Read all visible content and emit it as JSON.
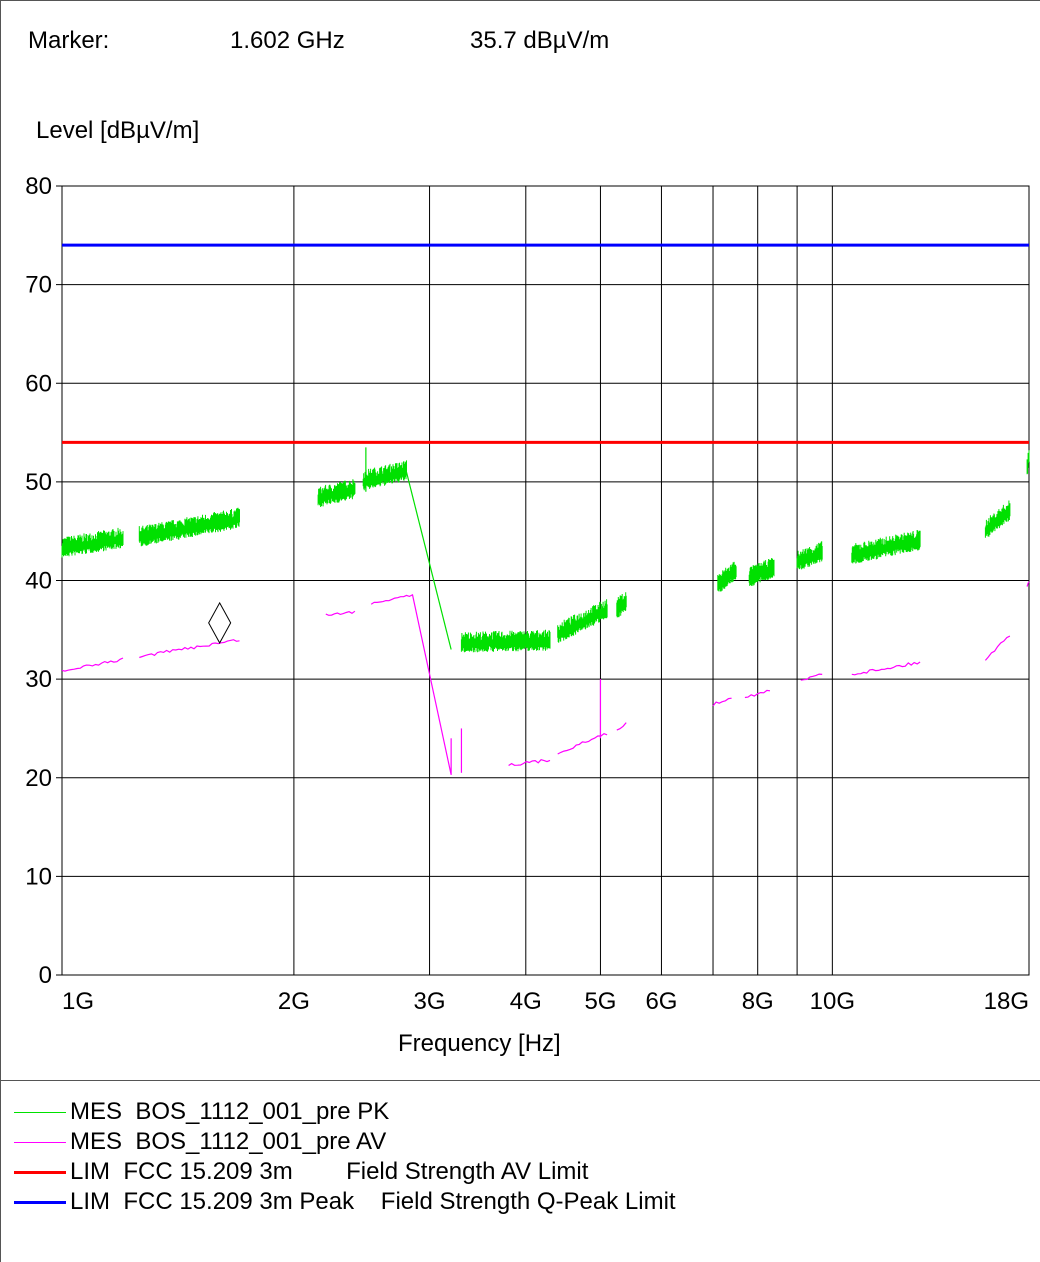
{
  "marker": {
    "label": "Marker:",
    "frequency": "1.602 GHz",
    "level": "35.7 dBµV/m"
  },
  "chart_data": {
    "type": "line",
    "title": "",
    "xlabel": "Frequency [Hz]",
    "ylabel": "Level [dBµV/m]",
    "xscale": "log",
    "xlim": [
      1000000000,
      18000000000
    ],
    "ylim": [
      0,
      80
    ],
    "grid": true,
    "legend_position": "bottom",
    "yticks": [
      0,
      10,
      20,
      30,
      40,
      50,
      60,
      70,
      80
    ],
    "ytick_labels": [
      "0",
      "10",
      "20",
      "30",
      "40",
      "50",
      "60",
      "70",
      "80"
    ],
    "xticks": [
      1000000000,
      2000000000,
      3000000000,
      4000000000,
      5000000000,
      6000000000,
      8000000000,
      10000000000,
      18000000000
    ],
    "xtick_labels": [
      "1G",
      "2G",
      "3G",
      "4G",
      "5G",
      "6G",
      "8G",
      "10G",
      "18G"
    ],
    "xgrid": [
      2000000000,
      3000000000,
      4000000000,
      5000000000,
      6000000000,
      7000000000,
      8000000000,
      9000000000,
      10000000000
    ],
    "marker_point": {
      "x": 1602000000,
      "y": 35.7
    },
    "series": [
      {
        "name": "MES  BOS_1112_001_pre PK",
        "style": "noisy",
        "color": "#00e000",
        "segments": [
          [
            [
              1000000000,
              43.2
            ],
            [
              1200000000,
              44.2
            ]
          ],
          [
            [
              1260000000,
              44.3
            ],
            [
              1700000000,
              46.2
            ]
          ],
          [
            [
              2150000000,
              48.3
            ],
            [
              2400000000,
              49.2
            ]
          ],
          [
            [
              2460000000,
              50.0
            ],
            [
              2800000000,
              51.0
            ]
          ],
          [
            [
              3300000000,
              33.6
            ],
            [
              4300000000,
              33.8
            ]
          ],
          [
            [
              4400000000,
              34.5
            ],
            [
              5100000000,
              37.0
            ]
          ],
          [
            [
              5250000000,
              37.0
            ],
            [
              5400000000,
              37.8
            ]
          ],
          [
            [
              7100000000,
              39.5
            ],
            [
              7500000000,
              41.0
            ]
          ],
          [
            [
              7800000000,
              40.2
            ],
            [
              8400000000,
              41.2
            ]
          ],
          [
            [
              9000000000,
              41.8
            ],
            [
              9700000000,
              42.8
            ]
          ],
          [
            [
              10600000000,
              42.5
            ],
            [
              13000000000,
              44.0
            ]
          ],
          [
            [
              15800000000,
              45.0
            ],
            [
              17000000000,
              47.0
            ]
          ],
          [
            [
              17900000000,
              51.5
            ],
            [
              18000000000,
              52.5
            ]
          ]
        ],
        "lines": [
          [
            [
              2800000000,
              51.0
            ],
            [
              3200000000,
              33.0
            ]
          ],
          [
            [
              2480000000,
              49.0
            ],
            [
              2480000000,
              53.5
            ]
          ]
        ]
      },
      {
        "name": "MES  BOS_1112_001_pre AV",
        "style": "thin",
        "color": "#ff00ff",
        "segments": [
          [
            [
              1000000000,
              30.8
            ],
            [
              1200000000,
              32.0
            ]
          ],
          [
            [
              1260000000,
              32.3
            ],
            [
              1700000000,
              34.0
            ]
          ],
          [
            [
              2200000000,
              36.5
            ],
            [
              2400000000,
              36.8
            ]
          ],
          [
            [
              2520000000,
              37.7
            ],
            [
              2850000000,
              38.6
            ]
          ],
          [
            [
              3800000000,
              21.3
            ],
            [
              4300000000,
              21.8
            ]
          ],
          [
            [
              4400000000,
              22.5
            ],
            [
              5100000000,
              24.5
            ]
          ],
          [
            [
              5250000000,
              24.8
            ],
            [
              5400000000,
              25.5
            ]
          ],
          [
            [
              7000000000,
              27.4
            ],
            [
              7400000000,
              28.2
            ]
          ],
          [
            [
              7700000000,
              28.2
            ],
            [
              8300000000,
              28.8
            ]
          ],
          [
            [
              9100000000,
              29.8
            ],
            [
              9700000000,
              30.6
            ]
          ],
          [
            [
              10600000000,
              30.5
            ],
            [
              13000000000,
              31.7
            ]
          ],
          [
            [
              15800000000,
              32.0
            ],
            [
              17000000000,
              34.5
            ]
          ],
          [
            [
              17900000000,
              39.5
            ],
            [
              18000000000,
              40.0
            ]
          ]
        ],
        "lines": [
          [
            [
              2850000000,
              38.6
            ],
            [
              3200000000,
              20.3
            ]
          ],
          [
            [
              3200000000,
              20.3
            ],
            [
              3200000000,
              24.0
            ]
          ],
          [
            [
              3300000000,
              20.5
            ],
            [
              3300000000,
              25.0
            ]
          ],
          [
            [
              5000000000,
              24.0
            ],
            [
              5000000000,
              30.0
            ]
          ]
        ]
      },
      {
        "name": "LIM  FCC 15.209 3m        Field Strength AV Limit",
        "style": "thick",
        "color": "#ff0000",
        "segments": [
          [
            [
              1000000000,
              54
            ],
            [
              18000000000,
              54
            ]
          ]
        ],
        "lines": []
      },
      {
        "name": "LIM  FCC 15.209 3m Peak    Field Strength Q-Peak Limit",
        "style": "thick",
        "color": "#0000ff",
        "segments": [
          [
            [
              1000000000,
              74
            ],
            [
              18000000000,
              74
            ]
          ]
        ],
        "lines": []
      }
    ]
  }
}
